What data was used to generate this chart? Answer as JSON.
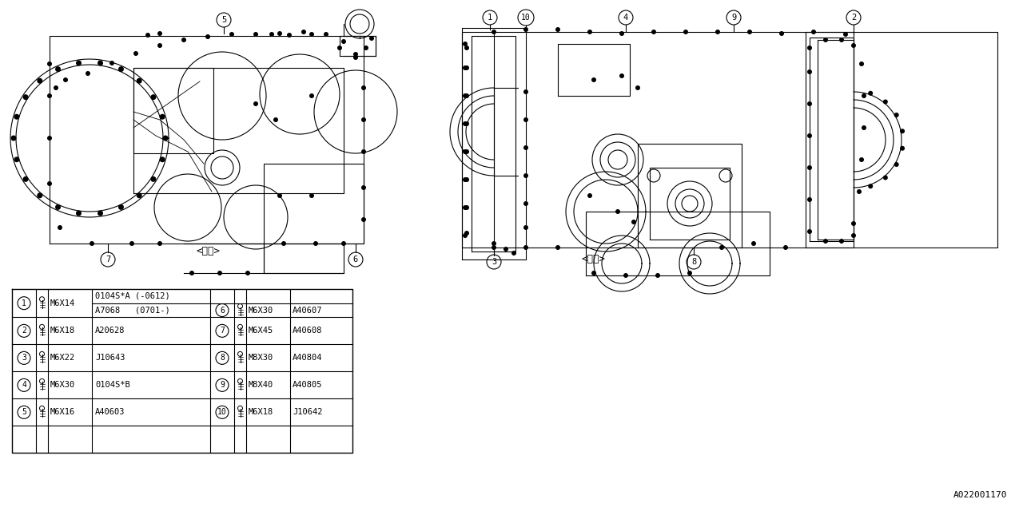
{
  "bg": "#ffffff",
  "lc": "#000000",
  "label_outer": "<外側>",
  "label_inner": "<内側>",
  "part_number": "A022001170",
  "table_rows": [
    [
      "1",
      "M6X14",
      "0104S*A (-0612)",
      "",
      "",
      ""
    ],
    [
      "",
      "",
      "A7068   (0701-)",
      "6",
      "M6X30",
      "A40607"
    ],
    [
      "2",
      "M6X18",
      "A20628",
      "7",
      "M6X45",
      "A40608"
    ],
    [
      "3",
      "M6X22",
      "J10643",
      "8",
      "M8X30",
      "A40804"
    ],
    [
      "4",
      "M6X30",
      "0104S*B",
      "9",
      "M8X40",
      "A40805"
    ],
    [
      "5",
      "M6X16",
      "A40603",
      "10",
      "M6X18",
      "J10642"
    ]
  ]
}
